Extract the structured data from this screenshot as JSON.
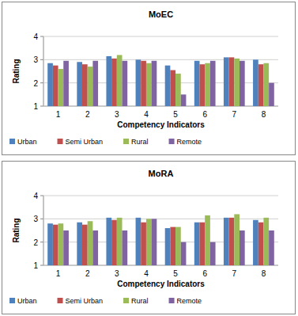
{
  "chart_data": [
    {
      "type": "bar",
      "title": "MoEC",
      "x_label": "Competency Indicators",
      "y_label": "Rating",
      "categories": [
        "1",
        "2",
        "3",
        "4",
        "5",
        "6",
        "7",
        "8"
      ],
      "series": [
        {
          "name": "Urban",
          "color": "#4f81bd",
          "values": [
            2.85,
            2.9,
            3.15,
            3.0,
            2.75,
            2.95,
            3.1,
            3.0
          ]
        },
        {
          "name": "Semi Urban",
          "color": "#c0504d",
          "values": [
            2.75,
            2.8,
            3.05,
            2.95,
            2.55,
            2.8,
            3.1,
            2.8
          ]
        },
        {
          "name": "Rural",
          "color": "#9bbb59",
          "values": [
            2.6,
            2.7,
            3.2,
            2.85,
            2.4,
            2.85,
            3.05,
            2.85
          ]
        },
        {
          "name": "Remote",
          "color": "#8064a2",
          "values": [
            2.95,
            2.95,
            2.95,
            2.95,
            1.5,
            2.95,
            2.95,
            2.0
          ]
        }
      ],
      "ylim": [
        1,
        4
      ],
      "yticks": [
        1,
        2,
        3,
        4
      ],
      "grid": true,
      "legend": "bottom"
    },
    {
      "type": "bar",
      "title": "MoRA",
      "x_label": "Competency Indicators",
      "y_label": "Rating",
      "categories": [
        "1",
        "2",
        "3",
        "4",
        "5",
        "6",
        "7",
        "8"
      ],
      "series": [
        {
          "name": "Urban",
          "color": "#4f81bd",
          "values": [
            2.8,
            2.85,
            3.05,
            3.05,
            2.6,
            2.85,
            3.05,
            2.95
          ]
        },
        {
          "name": "Semi Urban",
          "color": "#c0504d",
          "values": [
            2.75,
            2.75,
            2.95,
            2.85,
            2.65,
            2.85,
            3.05,
            2.85
          ]
        },
        {
          "name": "Rural",
          "color": "#9bbb59",
          "values": [
            2.8,
            2.9,
            3.05,
            3.0,
            2.65,
            3.15,
            3.2,
            3.05
          ]
        },
        {
          "name": "Remote",
          "color": "#8064a2",
          "values": [
            2.5,
            2.5,
            2.5,
            3.0,
            2.0,
            2.0,
            2.5,
            2.5
          ]
        }
      ],
      "ylim": [
        1,
        4
      ],
      "yticks": [
        1,
        2,
        3,
        4
      ],
      "grid": true,
      "legend": "bottom"
    }
  ]
}
